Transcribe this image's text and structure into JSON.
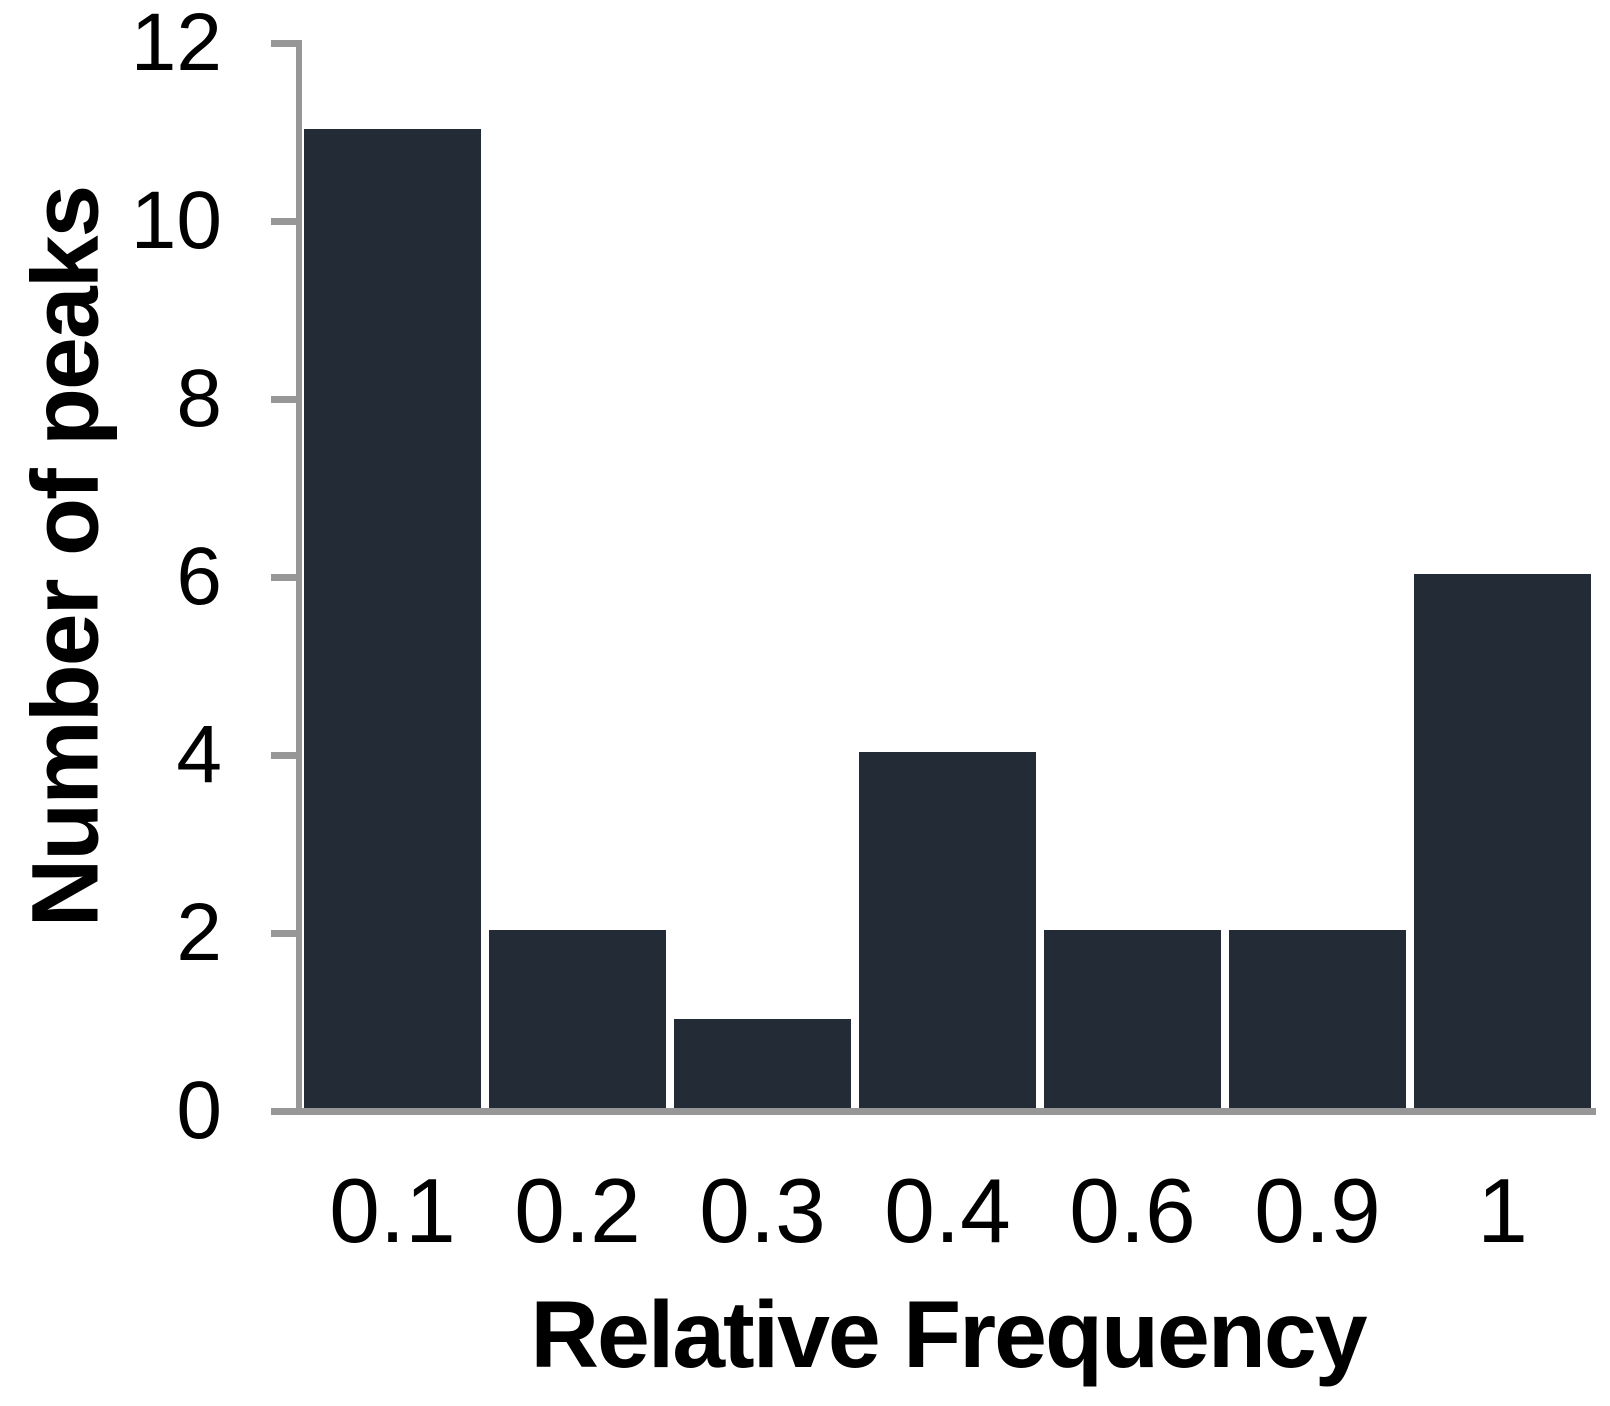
{
  "chart_data": {
    "type": "bar",
    "title": "",
    "categories": [
      "0.1",
      "0.2",
      "0.3",
      "0.4",
      "0.6",
      "0.9",
      "1"
    ],
    "values": [
      11,
      2,
      1,
      4,
      2,
      2,
      6
    ],
    "xlabel": "Relative Frequency",
    "ylabel": "Number of peaks",
    "ylim": [
      0,
      12
    ],
    "yticks": [
      0,
      2,
      4,
      6,
      8,
      10,
      12
    ],
    "grid": false,
    "legend": "none",
    "colors": {
      "bar": "#232B37",
      "axis": "#979797",
      "text": "#000000"
    }
  }
}
